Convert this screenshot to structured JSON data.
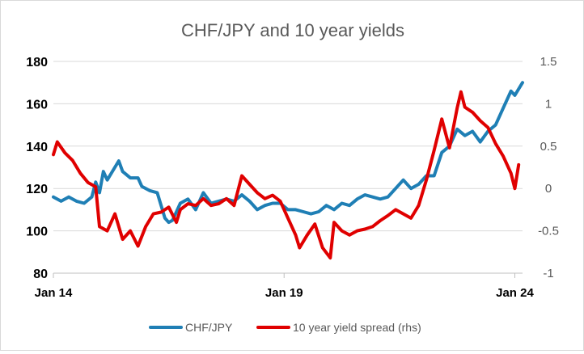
{
  "chart_data": {
    "type": "line",
    "title": "CHF/JPY and 10 year yields",
    "x_range": [
      "2014-01",
      "2024-03"
    ],
    "x_ticks": [
      {
        "date": "2014-01",
        "label": "Jan 14"
      },
      {
        "date": "2019-01",
        "label": "Jan 19"
      },
      {
        "date": "2024-01",
        "label": "Jan 24"
      }
    ],
    "y_left": {
      "min": 80,
      "max": 180,
      "ticks": [
        "80",
        "100",
        "120",
        "140",
        "160",
        "180"
      ]
    },
    "y_right": {
      "min": -1,
      "max": 1.5,
      "ticks": [
        "-1",
        "-0.5",
        "0",
        "0.5",
        "1",
        "1.5"
      ]
    },
    "grid": "horizontal",
    "legend_position": "bottom",
    "colors": {
      "chfjpy": "#1f7fb5",
      "spread": "#e00000",
      "grid": "#d9d9d9",
      "title": "#595959"
    },
    "series": [
      {
        "name": "CHF/JPY",
        "axis": "left",
        "color": "#1f7fb5",
        "points": [
          [
            "2014-01",
            116
          ],
          [
            "2014-03",
            114
          ],
          [
            "2014-05",
            116
          ],
          [
            "2014-07",
            114
          ],
          [
            "2014-09",
            113
          ],
          [
            "2014-11",
            116
          ],
          [
            "2014-12",
            123
          ],
          [
            "2015-01",
            118
          ],
          [
            "2015-02",
            128
          ],
          [
            "2015-03",
            124
          ],
          [
            "2015-04",
            127
          ],
          [
            "2015-06",
            133
          ],
          [
            "2015-07",
            128
          ],
          [
            "2015-09",
            125
          ],
          [
            "2015-11",
            125
          ],
          [
            "2015-12",
            121
          ],
          [
            "2016-02",
            119
          ],
          [
            "2016-04",
            118
          ],
          [
            "2016-06",
            106
          ],
          [
            "2016-07",
            104
          ],
          [
            "2016-08",
            105
          ],
          [
            "2016-10",
            113
          ],
          [
            "2016-12",
            115
          ],
          [
            "2017-02",
            110
          ],
          [
            "2017-04",
            118
          ],
          [
            "2017-06",
            113
          ],
          [
            "2017-08",
            114
          ],
          [
            "2017-10",
            115
          ],
          [
            "2017-12",
            114
          ],
          [
            "2018-02",
            117
          ],
          [
            "2018-04",
            114
          ],
          [
            "2018-06",
            110
          ],
          [
            "2018-08",
            112
          ],
          [
            "2018-10",
            113
          ],
          [
            "2018-12",
            113
          ],
          [
            "2019-02",
            110
          ],
          [
            "2019-04",
            110
          ],
          [
            "2019-06",
            109
          ],
          [
            "2019-08",
            108
          ],
          [
            "2019-10",
            109
          ],
          [
            "2019-12",
            112
          ],
          [
            "2020-02",
            110
          ],
          [
            "2020-04",
            113
          ],
          [
            "2020-06",
            112
          ],
          [
            "2020-08",
            115
          ],
          [
            "2020-10",
            117
          ],
          [
            "2020-12",
            116
          ],
          [
            "2021-02",
            115
          ],
          [
            "2021-04",
            116
          ],
          [
            "2021-06",
            120
          ],
          [
            "2021-08",
            124
          ],
          [
            "2021-10",
            120
          ],
          [
            "2021-12",
            122
          ],
          [
            "2022-02",
            126
          ],
          [
            "2022-04",
            126
          ],
          [
            "2022-06",
            137
          ],
          [
            "2022-08",
            140
          ],
          [
            "2022-10",
            148
          ],
          [
            "2022-12",
            145
          ],
          [
            "2023-02",
            147
          ],
          [
            "2023-04",
            142
          ],
          [
            "2023-06",
            147
          ],
          [
            "2023-08",
            150
          ],
          [
            "2023-10",
            158
          ],
          [
            "2023-12",
            166
          ],
          [
            "2024-01",
            164
          ],
          [
            "2024-02",
            167
          ],
          [
            "2024-03",
            170
          ]
        ]
      },
      {
        "name": "10 year yield spread (rhs)",
        "axis": "right",
        "color": "#e00000",
        "points": [
          [
            "2014-01",
            0.4
          ],
          [
            "2014-02",
            0.55
          ],
          [
            "2014-04",
            0.42
          ],
          [
            "2014-06",
            0.33
          ],
          [
            "2014-08",
            0.18
          ],
          [
            "2014-10",
            0.07
          ],
          [
            "2014-12",
            0.02
          ],
          [
            "2015-01",
            -0.45
          ],
          [
            "2015-03",
            -0.5
          ],
          [
            "2015-05",
            -0.3
          ],
          [
            "2015-07",
            -0.6
          ],
          [
            "2015-09",
            -0.5
          ],
          [
            "2015-11",
            -0.68
          ],
          [
            "2016-01",
            -0.45
          ],
          [
            "2016-03",
            -0.3
          ],
          [
            "2016-05",
            -0.28
          ],
          [
            "2016-07",
            -0.22
          ],
          [
            "2016-09",
            -0.4
          ],
          [
            "2016-10",
            -0.25
          ],
          [
            "2016-12",
            -0.18
          ],
          [
            "2017-02",
            -0.2
          ],
          [
            "2017-04",
            -0.12
          ],
          [
            "2017-06",
            -0.2
          ],
          [
            "2017-08",
            -0.18
          ],
          [
            "2017-10",
            -0.12
          ],
          [
            "2017-12",
            -0.2
          ],
          [
            "2018-02",
            0.15
          ],
          [
            "2018-04",
            0.05
          ],
          [
            "2018-06",
            -0.05
          ],
          [
            "2018-08",
            -0.12
          ],
          [
            "2018-10",
            -0.08
          ],
          [
            "2018-12",
            -0.15
          ],
          [
            "2019-02",
            -0.35
          ],
          [
            "2019-04",
            -0.55
          ],
          [
            "2019-05",
            -0.7
          ],
          [
            "2019-07",
            -0.55
          ],
          [
            "2019-09",
            -0.42
          ],
          [
            "2019-11",
            -0.7
          ],
          [
            "2020-01",
            -0.82
          ],
          [
            "2020-02",
            -0.4
          ],
          [
            "2020-04",
            -0.5
          ],
          [
            "2020-06",
            -0.55
          ],
          [
            "2020-08",
            -0.5
          ],
          [
            "2020-10",
            -0.48
          ],
          [
            "2020-12",
            -0.45
          ],
          [
            "2021-02",
            -0.38
          ],
          [
            "2021-04",
            -0.32
          ],
          [
            "2021-06",
            -0.25
          ],
          [
            "2021-08",
            -0.3
          ],
          [
            "2021-10",
            -0.35
          ],
          [
            "2021-12",
            -0.2
          ],
          [
            "2022-02",
            0.1
          ],
          [
            "2022-04",
            0.45
          ],
          [
            "2022-06",
            0.82
          ],
          [
            "2022-08",
            0.48
          ],
          [
            "2022-10",
            0.95
          ],
          [
            "2022-11",
            1.14
          ],
          [
            "2022-12",
            0.96
          ],
          [
            "2023-02",
            0.9
          ],
          [
            "2023-04",
            0.8
          ],
          [
            "2023-06",
            0.72
          ],
          [
            "2023-08",
            0.53
          ],
          [
            "2023-10",
            0.38
          ],
          [
            "2023-12",
            0.18
          ],
          [
            "2024-01",
            0.0
          ],
          [
            "2024-02",
            0.28
          ]
        ]
      }
    ]
  }
}
